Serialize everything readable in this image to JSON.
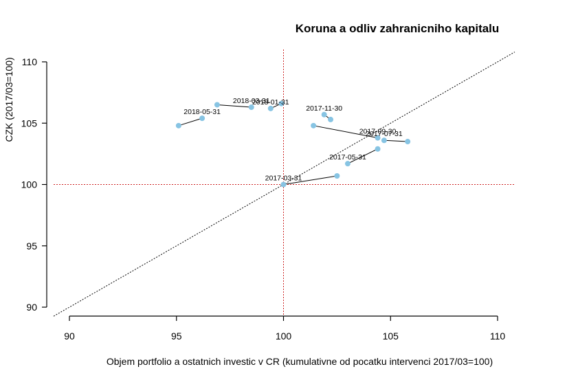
{
  "chart_data": {
    "type": "scatter",
    "title": "Koruna a odliv zahranicniho kapitalu",
    "xlabel": "Objem portfolio a ostatnich investic v CR (kumulativne od pocatku intervenci 2017/03=100)",
    "ylabel": "CZK (2017/03=100)",
    "xlim": [
      90,
      110
    ],
    "ylim": [
      90,
      110
    ],
    "xticks": [
      "90",
      "95",
      "100",
      "105",
      "110"
    ],
    "yticks": [
      "90",
      "95",
      "100",
      "105",
      "110"
    ],
    "reference_lines": {
      "vertical_x": 100,
      "horizontal_y": 100,
      "diagonal": "y = x"
    },
    "points": [
      {
        "x": 100.0,
        "y": 100.0,
        "label": "2017-03-31"
      },
      {
        "x": 102.5,
        "y": 100.7,
        "label": ""
      },
      {
        "x": 103.0,
        "y": 101.7,
        "label": "2017-05-31"
      },
      {
        "x": 104.4,
        "y": 102.9,
        "label": ""
      },
      {
        "x": 104.7,
        "y": 103.6,
        "label": "2017-07-31"
      },
      {
        "x": 105.8,
        "y": 103.5,
        "label": ""
      },
      {
        "x": 104.4,
        "y": 103.8,
        "label": "2017-09-30"
      },
      {
        "x": 101.4,
        "y": 104.8,
        "label": ""
      },
      {
        "x": 101.9,
        "y": 105.7,
        "label": "2017-11-30"
      },
      {
        "x": 102.2,
        "y": 105.3,
        "label": ""
      },
      {
        "x": 99.4,
        "y": 106.2,
        "label": "2018-01-31"
      },
      {
        "x": 99.9,
        "y": 106.6,
        "label": ""
      },
      {
        "x": 98.5,
        "y": 106.3,
        "label": "2018-03-31"
      },
      {
        "x": 96.9,
        "y": 106.5,
        "label": ""
      },
      {
        "x": 96.2,
        "y": 105.4,
        "label": "2018-05-31"
      },
      {
        "x": 95.1,
        "y": 104.8,
        "label": ""
      }
    ]
  }
}
